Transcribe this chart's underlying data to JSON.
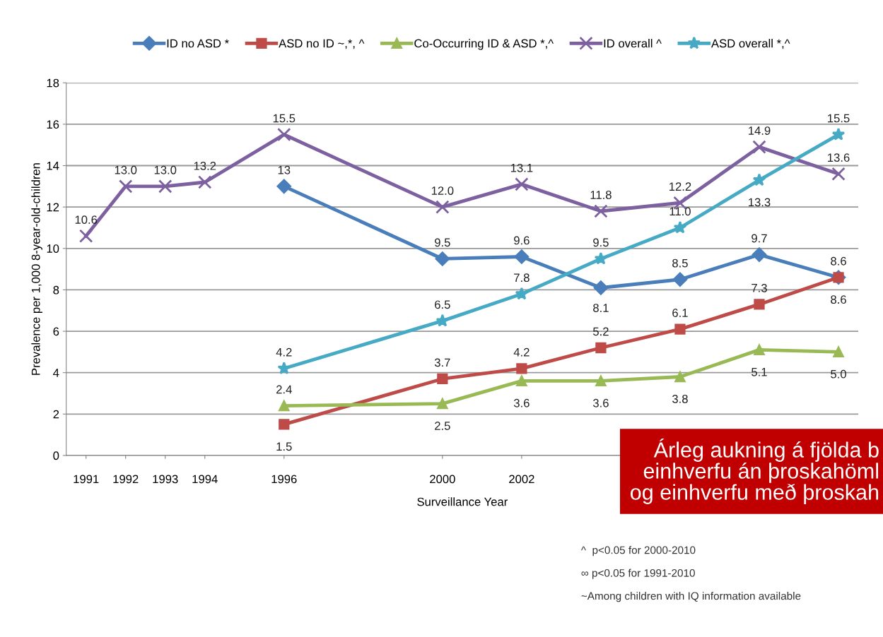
{
  "chart_data": {
    "type": "line",
    "ylabel": "Prevalence per 1,000 8-year-old-children",
    "xlabel": "Surveillance Year",
    "xlim": [
      1990.5,
      2010.5
    ],
    "xticks": [
      1991,
      1992,
      1993,
      1994,
      1996,
      2000,
      2002
    ],
    "ylim": [
      0,
      18
    ],
    "yticks": [
      0,
      2,
      4,
      6,
      8,
      10,
      12,
      14,
      16,
      18
    ],
    "grid": "y",
    "legend": "top",
    "series": [
      {
        "name": "ID no ASD *",
        "color": "#4a7ebb",
        "marker": "diamond",
        "x": [
          1996,
          2000,
          2002,
          2004,
          2006,
          2008,
          2010
        ],
        "values": [
          13,
          9.5,
          9.6,
          8.1,
          8.5,
          9.7,
          8.6
        ],
        "value_labels": [
          "13",
          "9.5",
          "9.6",
          "8.1",
          "8.5",
          "9.7",
          "8.6"
        ]
      },
      {
        "name": "ASD no ID ~,*, ^",
        "color": "#be4b48",
        "marker": "square",
        "x": [
          1996,
          2000,
          2002,
          2004,
          2006,
          2008,
          2010
        ],
        "values": [
          1.5,
          3.7,
          4.2,
          5.2,
          6.1,
          7.3,
          8.6
        ],
        "value_labels": [
          "1.5",
          "3.7",
          "4.2",
          "5.2",
          "6.1",
          "7.3",
          "8.6"
        ]
      },
      {
        "name": "Co-Occurring ID & ASD *,^",
        "color": "#98b954",
        "marker": "triangle",
        "x": [
          1996,
          2000,
          2002,
          2004,
          2006,
          2008,
          2010
        ],
        "values": [
          2.4,
          2.5,
          3.6,
          3.6,
          3.8,
          5.1,
          5.0
        ],
        "value_labels": [
          "2.4",
          "2.5",
          "3.6",
          "3.6",
          "3.8",
          "5.1",
          "5.0"
        ]
      },
      {
        "name": "ID overall ^",
        "color": "#7d60a0",
        "marker": "cross",
        "x": [
          1991,
          1992,
          1993,
          1994,
          1996,
          2000,
          2002,
          2004,
          2006,
          2008,
          2010
        ],
        "values": [
          10.6,
          13.0,
          13.0,
          13.2,
          15.5,
          12.0,
          13.1,
          11.8,
          12.2,
          14.9,
          13.6
        ],
        "value_labels": [
          "10.6",
          "13.0",
          "13.0",
          "13.2",
          "15.5",
          "12.0",
          "13.1",
          "11.8",
          "12.2",
          "14.9",
          "13.6"
        ]
      },
      {
        "name": "ASD overall *,^",
        "color": "#46aac5",
        "marker": "star",
        "x": [
          1996,
          2000,
          2002,
          2004,
          2006,
          2008,
          2010
        ],
        "values": [
          4.2,
          6.5,
          7.8,
          9.5,
          11.0,
          13.3,
          15.5
        ],
        "value_labels": [
          "4.2",
          "6.5",
          "7.8",
          "9.5",
          "11.0",
          "13.3",
          "15.5"
        ]
      }
    ],
    "annotations": [
      "Árleg aukning á fjölda b\neinhverfu án þroskahöml\nog einhverfu með þroskah",
      "^  p<0.05 for 2000-2010",
      "∞ p<0.05 for 1991-2010",
      "~Among children with IQ information available"
    ]
  }
}
